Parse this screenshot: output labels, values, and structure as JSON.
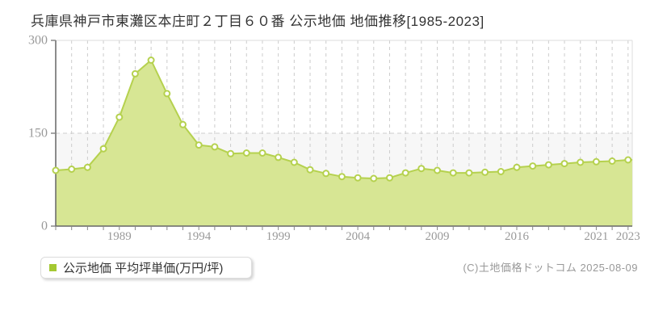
{
  "page": {
    "title": "兵庫県神戸市東灘区本庄町２丁目６０番 公示地価 地価推移[1985-2023]",
    "copyright": "(C)土地価格ドットコム 2025-08-09"
  },
  "legend": {
    "label": "公示地価 平均坪単価(万円/坪)",
    "marker_color": "#a4c832"
  },
  "chart_data": {
    "type": "area",
    "title": "兵庫県神戸市東灘区本庄町２丁目６０番 公示地価 地価推移[1985-2023]",
    "ylabel": "平均坪単価(万円/坪)",
    "x_range_label": "1985-2023",
    "ylim": [
      0,
      300
    ],
    "y_ticks": [
      "0",
      "150",
      "300"
    ],
    "series": [
      {
        "name": "公示地価 平均坪単価(万円/坪)",
        "values": [
          90,
          92,
          95,
          125,
          176,
          246,
          268,
          214,
          164,
          131,
          128,
          117,
          118,
          118,
          111,
          103,
          91,
          85,
          80,
          78,
          77,
          78,
          86,
          93,
          90,
          86,
          86,
          87,
          88,
          95,
          97,
          99,
          101,
          103,
          104,
          105,
          107
        ]
      }
    ],
    "x_tick_labels": [
      {
        "index": 4,
        "label": "1989"
      },
      {
        "index": 9,
        "label": "1994"
      },
      {
        "index": 14,
        "label": "1999"
      },
      {
        "index": 19,
        "label": "2004"
      },
      {
        "index": 24,
        "label": "2009"
      },
      {
        "index": 29,
        "label": "2016"
      },
      {
        "index": 34,
        "label": "2021"
      },
      {
        "index": 36,
        "label": "2023"
      }
    ],
    "grid": {
      "vertical_dashed_at_every_point": true,
      "horizontal_dashed_at": 150,
      "legend_position": "bottom-left"
    },
    "colors": {
      "area_fill": "#d7e694",
      "line": "#b5d14e",
      "marker_fill": "#ffffff",
      "marker_stroke": "#b5d14e",
      "grid": "#cccccc",
      "axis": "#666666",
      "tick": "#888888",
      "tick_label": "#999999",
      "band_below_150": "#f7f7f7",
      "plot_border": "#dddddd"
    }
  }
}
